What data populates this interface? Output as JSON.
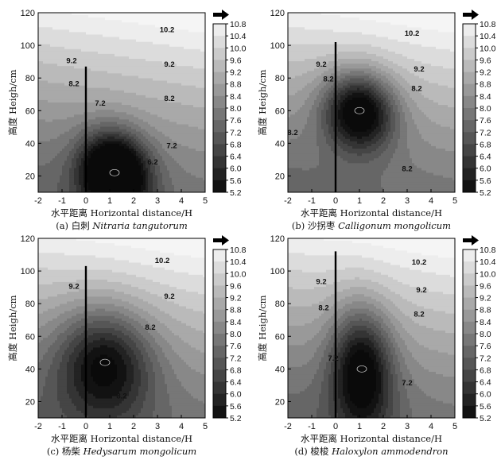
{
  "chart_data": [
    {
      "type": "heatmap",
      "caption_prefix": "(a) 白刺",
      "caption_species": "Nitraria tangutorum",
      "xlabel": "水平距离 Horizontal distance/H",
      "ylabel": "高度 Heigh/cm",
      "xlim": [
        -2,
        5
      ],
      "ylim": [
        10,
        120
      ],
      "x_ticks": [
        "-2",
        "-1",
        "0",
        "1",
        "2",
        "3",
        "4",
        "5"
      ],
      "y_ticks": [
        "20",
        "40",
        "60",
        "80",
        "100",
        "120"
      ],
      "colorbar": {
        "ticks": [
          "10.8",
          "10.4",
          "10.0",
          "9.6",
          "9.2",
          "8.8",
          "8.4",
          "8.0",
          "7.6",
          "7.2",
          "6.8",
          "6.4",
          "6.0",
          "5.6",
          "5.2"
        ],
        "min": 5.2,
        "max": 10.8
      },
      "wind_arrow_icon": "right-arrow-icon",
      "shrub": {
        "x": 0,
        "height": 87
      },
      "minimum": {
        "x": 1.2,
        "y": 22,
        "value": 5.2
      },
      "contour_labels": [
        {
          "text": "10.2",
          "x": 3.4,
          "y": 108
        },
        {
          "text": "9.2",
          "x": -0.6,
          "y": 89
        },
        {
          "text": "9.2",
          "x": 3.5,
          "y": 87
        },
        {
          "text": "8.2",
          "x": -0.5,
          "y": 75
        },
        {
          "text": "8.2",
          "x": 3.5,
          "y": 66
        },
        {
          "text": "7.2",
          "x": 0.6,
          "y": 63
        },
        {
          "text": "7.2",
          "x": 3.6,
          "y": 37
        },
        {
          "text": "6.2",
          "x": 2.8,
          "y": 27
        }
      ]
    },
    {
      "type": "heatmap",
      "caption_prefix": "(b) 沙拐枣",
      "caption_species": "Calligonum mongolicum",
      "xlabel": "水平距离 Horizontal distance/H",
      "ylabel": "高度 Heigh/cm",
      "xlim": [
        -2,
        5
      ],
      "ylim": [
        10,
        120
      ],
      "x_ticks": [
        "-2",
        "-1",
        "0",
        "1",
        "2",
        "3",
        "4",
        "5"
      ],
      "y_ticks": [
        "20",
        "40",
        "60",
        "80",
        "100",
        "120"
      ],
      "colorbar": {
        "ticks": [
          "10.8",
          "10.4",
          "10.0",
          "9.6",
          "9.2",
          "8.8",
          "8.4",
          "8.0",
          "7.6",
          "7.2",
          "6.8",
          "6.4",
          "6.0",
          "5.6",
          "5.2"
        ],
        "min": 5.2,
        "max": 10.8
      },
      "wind_arrow_icon": "right-arrow-icon",
      "shrub": {
        "x": 0,
        "height": 102
      },
      "minimum": {
        "x": 1.0,
        "y": 60,
        "value": 5.6
      },
      "contour_labels": [
        {
          "text": "10.2",
          "x": 3.2,
          "y": 106
        },
        {
          "text": "9.2",
          "x": -0.6,
          "y": 87
        },
        {
          "text": "9.2",
          "x": 3.5,
          "y": 84
        },
        {
          "text": "8.2",
          "x": -0.3,
          "y": 78
        },
        {
          "text": "8.2",
          "x": 3.4,
          "y": 72
        },
        {
          "text": "8.2",
          "x": -1.8,
          "y": 45
        },
        {
          "text": "8.2",
          "x": 3.0,
          "y": 23
        }
      ]
    },
    {
      "type": "heatmap",
      "caption_prefix": "(c) 杨柴",
      "caption_species": "Hedysarum mongolicum",
      "xlabel": "水平距离 Horizontal distance/H",
      "ylabel": "高度 Heigh/cm",
      "xlim": [
        -2,
        5
      ],
      "ylim": [
        10,
        120
      ],
      "x_ticks": [
        "-2",
        "-1",
        "0",
        "1",
        "2",
        "3",
        "4",
        "5"
      ],
      "y_ticks": [
        "20",
        "40",
        "60",
        "80",
        "100",
        "120"
      ],
      "colorbar": {
        "ticks": [
          "10.8",
          "10.4",
          "10.0",
          "9.6",
          "9.2",
          "8.8",
          "8.4",
          "8.0",
          "7.6",
          "7.2",
          "6.8",
          "6.4",
          "6.0",
          "5.6",
          "5.2"
        ],
        "min": 5.2,
        "max": 10.8
      },
      "wind_arrow_icon": "right-arrow-icon",
      "shrub": {
        "x": 0,
        "height": 103
      },
      "minimum": {
        "x": 0.8,
        "y": 44,
        "value": 6.8
      },
      "contour_labels": [
        {
          "text": "10.2",
          "x": 3.2,
          "y": 105
        },
        {
          "text": "9.2",
          "x": -0.5,
          "y": 89
        },
        {
          "text": "9.2",
          "x": 3.5,
          "y": 83
        },
        {
          "text": "8.2",
          "x": 2.7,
          "y": 64
        },
        {
          "text": "8.2",
          "x": 1.5,
          "y": 22
        }
      ]
    },
    {
      "type": "heatmap",
      "caption_prefix": "(d) 梭梭",
      "caption_species": "Haloxylon ammodendron",
      "xlabel": "水平距离 Horizontal distance/H",
      "ylabel": "高度 Heigh/cm",
      "xlim": [
        -2,
        5
      ],
      "ylim": [
        10,
        120
      ],
      "x_ticks": [
        "-2",
        "-1",
        "0",
        "1",
        "2",
        "3",
        "4",
        "5"
      ],
      "y_ticks": [
        "20",
        "40",
        "60",
        "80",
        "100",
        "120"
      ],
      "colorbar": {
        "ticks": [
          "10.8",
          "10.4",
          "10.0",
          "9.6",
          "9.2",
          "8.8",
          "8.4",
          "8.0",
          "7.6",
          "7.2",
          "6.8",
          "6.4",
          "6.0",
          "5.6",
          "5.2"
        ],
        "min": 5.2,
        "max": 10.8
      },
      "wind_arrow_icon": "right-arrow-icon",
      "shrub": {
        "x": 0,
        "height": 112
      },
      "minimum": {
        "x": 1.1,
        "y": 40,
        "value": 6.4
      },
      "contour_labels": [
        {
          "text": "10.2",
          "x": 3.5,
          "y": 104
        },
        {
          "text": "9.2",
          "x": -0.6,
          "y": 92
        },
        {
          "text": "9.2",
          "x": 3.6,
          "y": 87
        },
        {
          "text": "8.2",
          "x": -0.5,
          "y": 76
        },
        {
          "text": "8.2",
          "x": 3.5,
          "y": 72
        },
        {
          "text": "7.2",
          "x": -0.1,
          "y": 45
        },
        {
          "text": "7.2",
          "x": 3.0,
          "y": 30
        }
      ]
    }
  ]
}
